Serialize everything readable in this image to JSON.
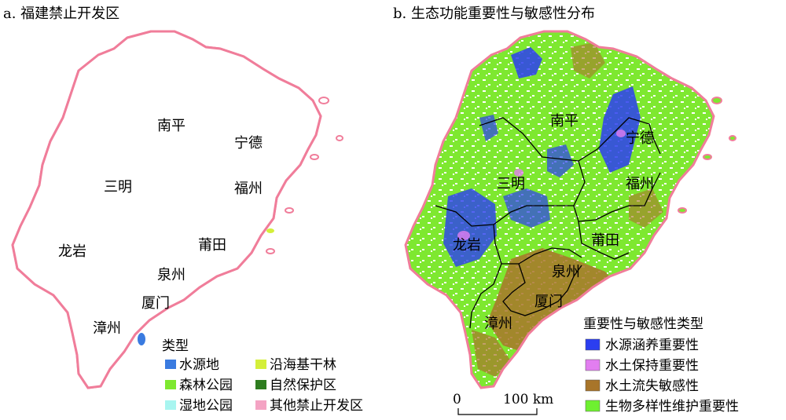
{
  "panels": {
    "a": {
      "title": "a. 福建禁止开发区",
      "cities": [
        "南平",
        "宁德",
        "三明",
        "福州",
        "莆田",
        "龙岩",
        "泉州",
        "厦门",
        "漳州"
      ],
      "legend": {
        "title": "类型",
        "items": [
          {
            "label": "水源地",
            "color": "#3a7be0"
          },
          {
            "label": "沿海基干林",
            "color": "#d4ef3a"
          },
          {
            "label": "森林公园",
            "color": "#7ee830"
          },
          {
            "label": "自然保护区",
            "color": "#2e7d1f"
          },
          {
            "label": "湿地公园",
            "color": "#a8f5f0"
          },
          {
            "label": "其他禁止开发区",
            "color": "#f4a3c3"
          }
        ]
      }
    },
    "b": {
      "title": "b. 生态功能重要性与敏感性分布",
      "cities": [
        "南平",
        "宁德",
        "三明",
        "福州",
        "龙岩",
        "莆田",
        "泉州",
        "厦门",
        "漳州"
      ],
      "legend": {
        "title": "重要性与敏感性类型",
        "items": [
          {
            "label": "水源涵养重要性",
            "color": "#2b3ef0"
          },
          {
            "label": "水土保持重要性",
            "color": "#e27ef0"
          },
          {
            "label": "水土流失敏感性",
            "color": "#a8752a"
          },
          {
            "label": "生物多样性维护重要性",
            "color": "#6ef030"
          }
        ]
      },
      "scale_bar": {
        "start_label": "0",
        "end_label": "100 km"
      }
    }
  },
  "colors": {
    "province_outline": "#f07d9a",
    "city_boundary": "#000000",
    "land_a": "#ffffff",
    "base_b": "#7ee830"
  }
}
